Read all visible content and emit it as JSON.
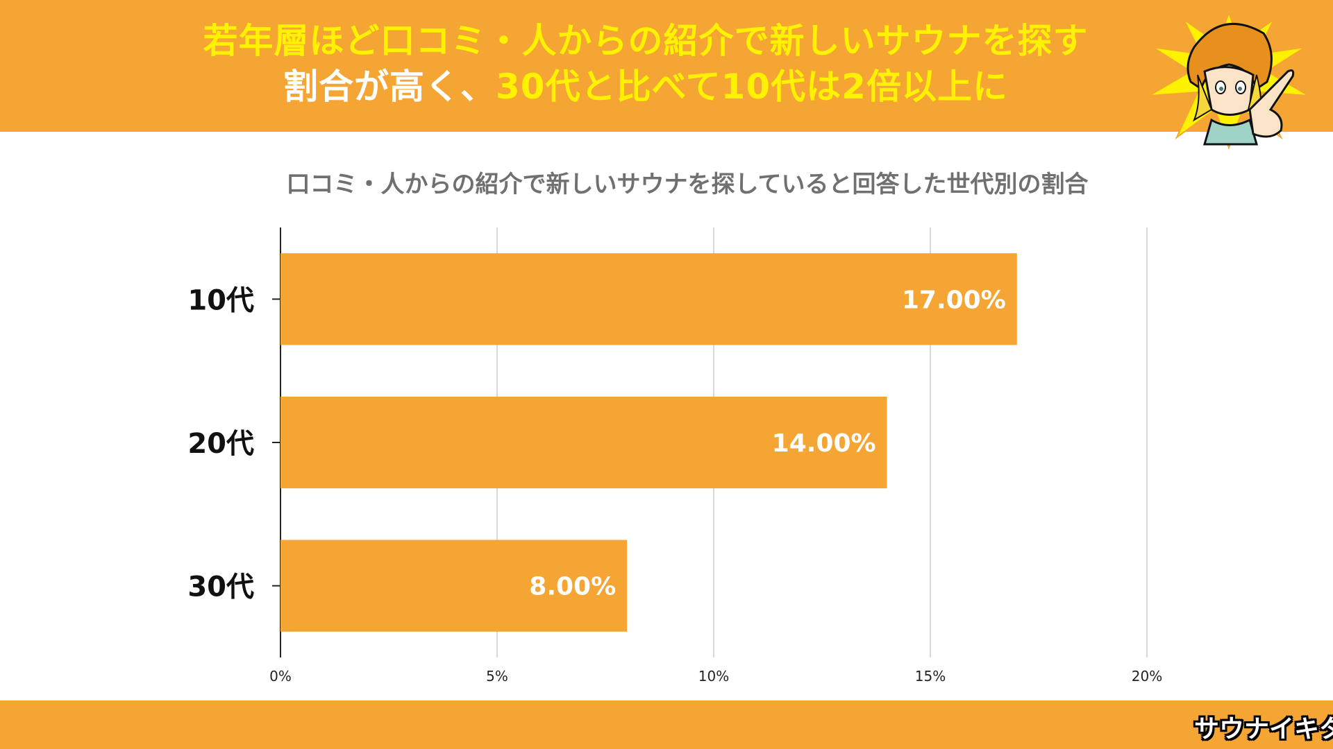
{
  "header": {
    "headline_line1": "若年層ほど口コミ・人からの紹介で新しいサウナを探す",
    "headline_line2_white": "割合が高く、",
    "headline_line2_yellow": "30代と比べて10代は2倍以上に"
  },
  "colors": {
    "brand_orange": "#F4A533",
    "headline_yellow": "#FFF200",
    "bar": "#F4A533",
    "grid": "#cccccc",
    "axis": "#222222",
    "subtitle_gray": "#707070"
  },
  "footer": {
    "logo_text": "サウナイキタイ",
    "logo_icon": "sauna-logo-icon"
  },
  "mascot_icon": "pointing-character-icon",
  "chart_data": {
    "type": "bar",
    "orientation": "horizontal",
    "title": "口コミ・人からの紹介で新しいサウナを探していると回答した世代別の割合",
    "categories": [
      "10代",
      "20代",
      "30代"
    ],
    "values": [
      17,
      14,
      8
    ],
    "data_labels": [
      "17.00%",
      "14.00%",
      "8.00%"
    ],
    "xlim": [
      0,
      20
    ],
    "x_ticks": [
      0,
      5,
      10,
      15,
      20
    ],
    "x_tick_labels": [
      "0%",
      "5%",
      "10%",
      "15%",
      "20%"
    ],
    "grid": true,
    "legend": "none"
  }
}
